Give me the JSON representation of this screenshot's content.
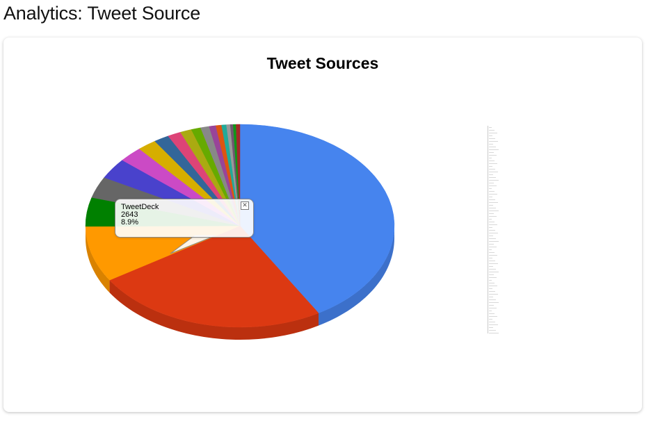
{
  "page": {
    "title": "Analytics: Tweet Source"
  },
  "chart_data": {
    "type": "pie",
    "title": "Tweet Sources",
    "three_d": true,
    "legend_placement": "right",
    "slices": [
      {
        "value": 41.5,
        "color": "#4684EE"
      },
      {
        "value": 24.5,
        "color": "#DC3912"
      },
      {
        "value": 8.9,
        "color": "#FF9900"
      },
      {
        "value": 4.6,
        "color": "#008000"
      },
      {
        "value": 3.4,
        "color": "#666666"
      },
      {
        "value": 3.3,
        "color": "#4942CC"
      },
      {
        "value": 2.5,
        "color": "#CB4AC5"
      },
      {
        "value": 2.0,
        "color": "#D6AE00"
      },
      {
        "value": 1.6,
        "color": "#336699"
      },
      {
        "value": 1.4,
        "color": "#DD4477"
      },
      {
        "value": 1.2,
        "color": "#AAAA11"
      },
      {
        "value": 1.0,
        "color": "#66AA00"
      },
      {
        "value": 0.9,
        "color": "#888888"
      },
      {
        "value": 0.7,
        "color": "#994499"
      },
      {
        "value": 0.6,
        "color": "#DD5511"
      },
      {
        "value": 0.5,
        "color": "#22AA99"
      },
      {
        "value": 0.4,
        "color": "#999999"
      },
      {
        "value": 0.3,
        "color": "#705770"
      },
      {
        "value": 0.3,
        "color": "#109618"
      },
      {
        "value": 0.4,
        "color": "#A32929"
      }
    ],
    "tooltip": {
      "label": "TweetDeck",
      "value": "2643",
      "percent": "8.9%",
      "close_icon": "close-icon"
    }
  }
}
